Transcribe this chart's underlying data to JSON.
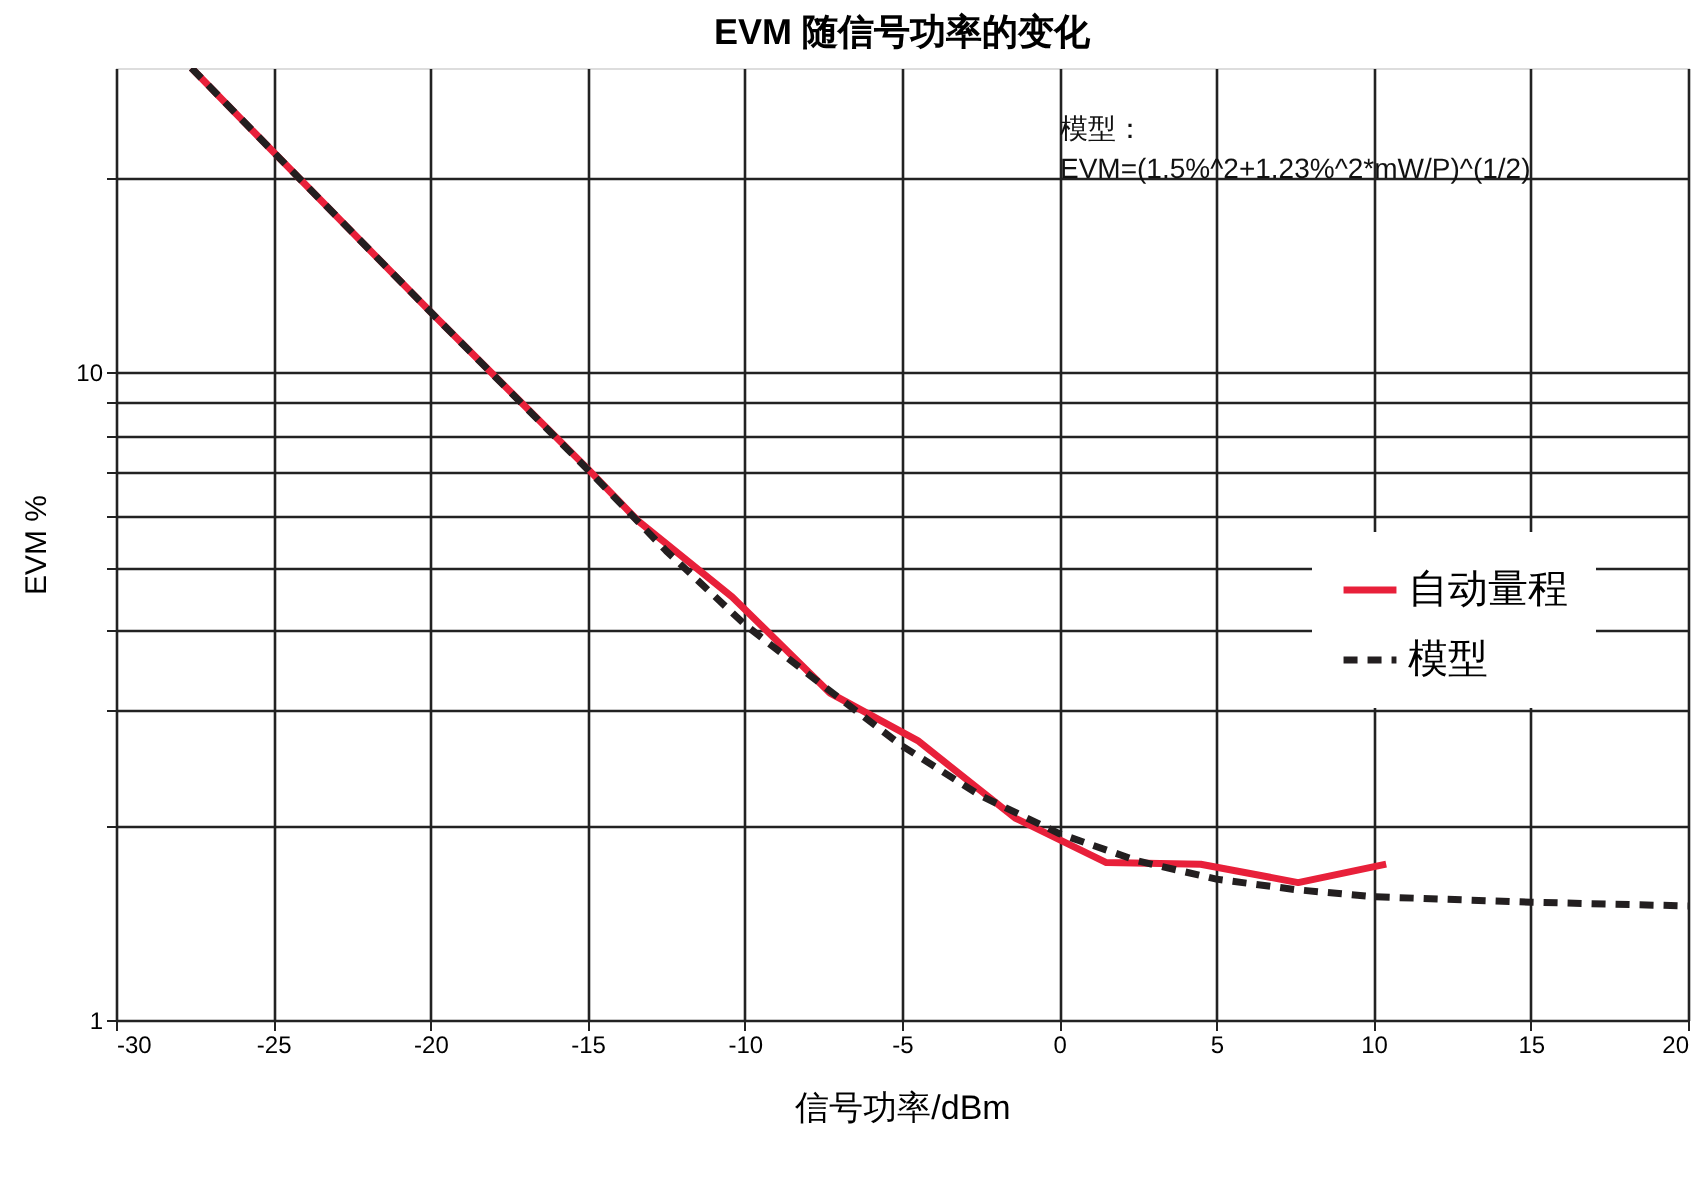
{
  "chart_data": {
    "type": "line",
    "title": "EVM 随信号功率的变化",
    "xlabel": "信号功率/dBm",
    "ylabel": "EVM %",
    "series": [
      {
        "name": "自动量程",
        "color": "#e8203a",
        "line_style": "solid",
        "x": [
          -27.6,
          -25,
          -20,
          -15,
          -13.4,
          -10.4,
          -7.3,
          -4.5,
          -1.4,
          1.5,
          4.5,
          7.6,
          10.4
        ],
        "values": [
          29.5,
          21.9,
          12.4,
          7.1,
          5.9,
          4.5,
          3.2,
          2.7,
          2.05,
          1.75,
          1.74,
          1.63,
          1.74
        ]
      },
      {
        "name": "模型",
        "color": "#231f20",
        "line_style": "dashed",
        "x": [
          -27.6,
          -25,
          -20,
          -15,
          -12.5,
          -10,
          -7.5,
          -5,
          -2.5,
          0,
          2.5,
          5,
          7.5,
          10,
          15,
          20
        ],
        "values": [
          29.5,
          21.9,
          12.4,
          7.08,
          5.3,
          4.08,
          3.28,
          2.65,
          2.22,
          1.94,
          1.76,
          1.65,
          1.59,
          1.55,
          1.52,
          1.5
        ]
      }
    ],
    "xlim": [
      -30,
      20
    ],
    "xticks": [
      -30,
      -25,
      -20,
      -15,
      -10,
      -5,
      0,
      5,
      10,
      15,
      20
    ],
    "ylim": [
      1,
      29.5
    ],
    "yticks": [
      1,
      {
        "value": 2,
        "label": null
      },
      {
        "value": 3,
        "label": null
      },
      {
        "value": 4,
        "label": null
      },
      {
        "value": 5,
        "label": null
      },
      {
        "value": 6,
        "label": null
      },
      {
        "value": 7,
        "label": null
      },
      {
        "value": 8,
        "label": null
      },
      {
        "value": 9,
        "label": null
      },
      10,
      {
        "value": 20,
        "label": null
      }
    ],
    "log": "y",
    "grid": true,
    "legend": "right",
    "annotations": [
      "模型：\nEVM=(1.5%^2+1.23%^2*mW/P)^(1/2)"
    ]
  }
}
